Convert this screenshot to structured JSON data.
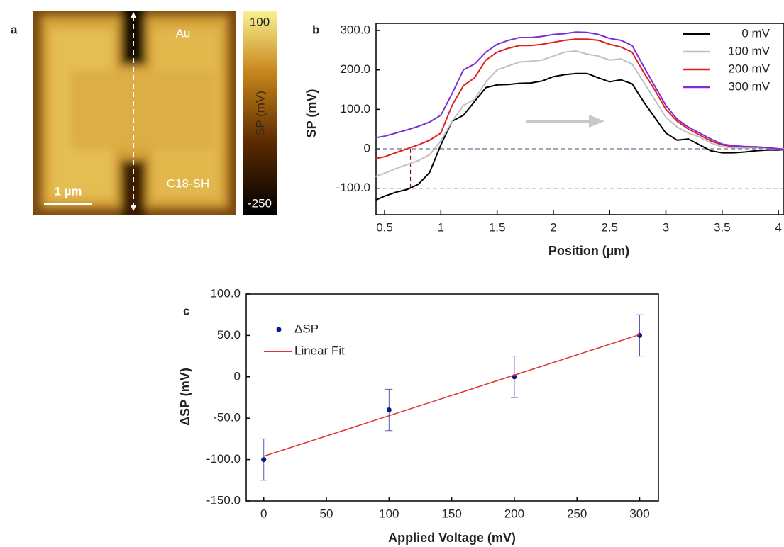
{
  "chart_data": [
    {
      "type": "image",
      "panel_label": "a",
      "annotations": [
        "Au",
        "C18-SH"
      ],
      "scale_bar": "1 µm",
      "colorbar": {
        "label": "SP (mV)",
        "lim": [
          -250,
          100
        ],
        "ticks": [
          -250,
          100
        ]
      }
    },
    {
      "type": "line",
      "panel_label": "b",
      "xlabel": "Position (µm)",
      "ylabel": "SP (mV)",
      "xlim": [
        0.424,
        4.05
      ],
      "ylim": [
        -167,
        318
      ],
      "xticks": [
        0.5,
        1,
        1.5,
        2,
        2.5,
        3,
        3.5,
        4
      ],
      "yticks": [
        {
          "value": 300,
          "label": "300.0"
        },
        {
          "value": 200,
          "label": "200.0"
        },
        {
          "value": 100,
          "label": "100.0"
        },
        0,
        {
          "value": -100,
          "label": "-100.0"
        }
      ],
      "hlines": [
        0,
        -100
      ],
      "vline": {
        "x": 0.73,
        "y": [
          -100,
          0
        ]
      },
      "legend": "upper right",
      "x": [
        0.42,
        0.5,
        0.6,
        0.7,
        0.8,
        0.9,
        1.0,
        1.1,
        1.2,
        1.3,
        1.4,
        1.5,
        1.6,
        1.7,
        1.8,
        1.9,
        2.0,
        2.1,
        2.2,
        2.3,
        2.4,
        2.5,
        2.6,
        2.7,
        2.8,
        2.9,
        3.0,
        3.1,
        3.2,
        3.3,
        3.4,
        3.5,
        3.6,
        3.7,
        3.8,
        3.9,
        4.0,
        4.05
      ],
      "series": [
        {
          "name": "0 mV",
          "color": "#000000",
          "values": [
            -130,
            -120,
            -110,
            -103,
            -90,
            -60,
            10,
            70,
            85,
            120,
            155,
            162,
            163,
            166,
            167,
            172,
            183,
            188,
            191,
            191,
            180,
            170,
            175,
            165,
            120,
            80,
            40,
            22,
            25,
            10,
            -5,
            -10,
            -10,
            -8,
            -5,
            -3,
            -3,
            -2
          ]
        },
        {
          "name": "100 mV",
          "color": "#c0c0c0",
          "values": [
            -70,
            -62,
            -50,
            -40,
            -30,
            -15,
            20,
            70,
            110,
            125,
            170,
            200,
            210,
            220,
            222,
            225,
            235,
            245,
            248,
            240,
            235,
            225,
            228,
            215,
            170,
            125,
            80,
            55,
            40,
            30,
            15,
            5,
            3,
            2,
            3,
            2,
            0,
            0
          ]
        },
        {
          "name": "200 mV",
          "color": "#e02020",
          "values": [
            -25,
            -20,
            -10,
            0,
            10,
            22,
            40,
            110,
            160,
            180,
            225,
            245,
            255,
            262,
            262,
            265,
            270,
            275,
            278,
            278,
            275,
            265,
            258,
            245,
            195,
            150,
            100,
            70,
            50,
            35,
            20,
            10,
            6,
            5,
            5,
            3,
            0,
            -1
          ]
        },
        {
          "name": "300 mV",
          "color": "#7b2fd6",
          "values": [
            28,
            32,
            40,
            48,
            57,
            68,
            85,
            140,
            200,
            215,
            245,
            265,
            275,
            282,
            282,
            285,
            290,
            292,
            296,
            295,
            290,
            280,
            275,
            262,
            210,
            160,
            110,
            75,
            55,
            40,
            25,
            12,
            8,
            6,
            5,
            3,
            0,
            -2
          ]
        }
      ]
    },
    {
      "type": "scatter",
      "panel_label": "c",
      "xlabel": "Applied Voltage (mV)",
      "ylabel": "ΔSP (mV)",
      "xlim": [
        -14,
        315
      ],
      "ylim": [
        -150,
        100
      ],
      "xticks": [
        0,
        50,
        100,
        150,
        200,
        250,
        300
      ],
      "yticks": [
        {
          "value": 100,
          "label": "100.0"
        },
        {
          "value": 50,
          "label": "50.0"
        },
        0,
        {
          "value": -50,
          "label": "-50.0"
        },
        {
          "value": -100,
          "label": "-100.0"
        },
        {
          "value": -150,
          "label": "-150.0"
        }
      ],
      "legend": "upper left",
      "series": [
        {
          "name": "ΔSP",
          "color": "#0a1a8c",
          "style": "markers",
          "x": [
            0,
            100,
            200,
            300
          ],
          "values": [
            -100,
            -40,
            0,
            50
          ],
          "errors": [
            25,
            25,
            25,
            25
          ]
        },
        {
          "name": "Linear Fit",
          "color": "#e03030",
          "style": "line",
          "x": [
            0,
            300
          ],
          "values": [
            -96,
            51
          ]
        }
      ]
    }
  ]
}
